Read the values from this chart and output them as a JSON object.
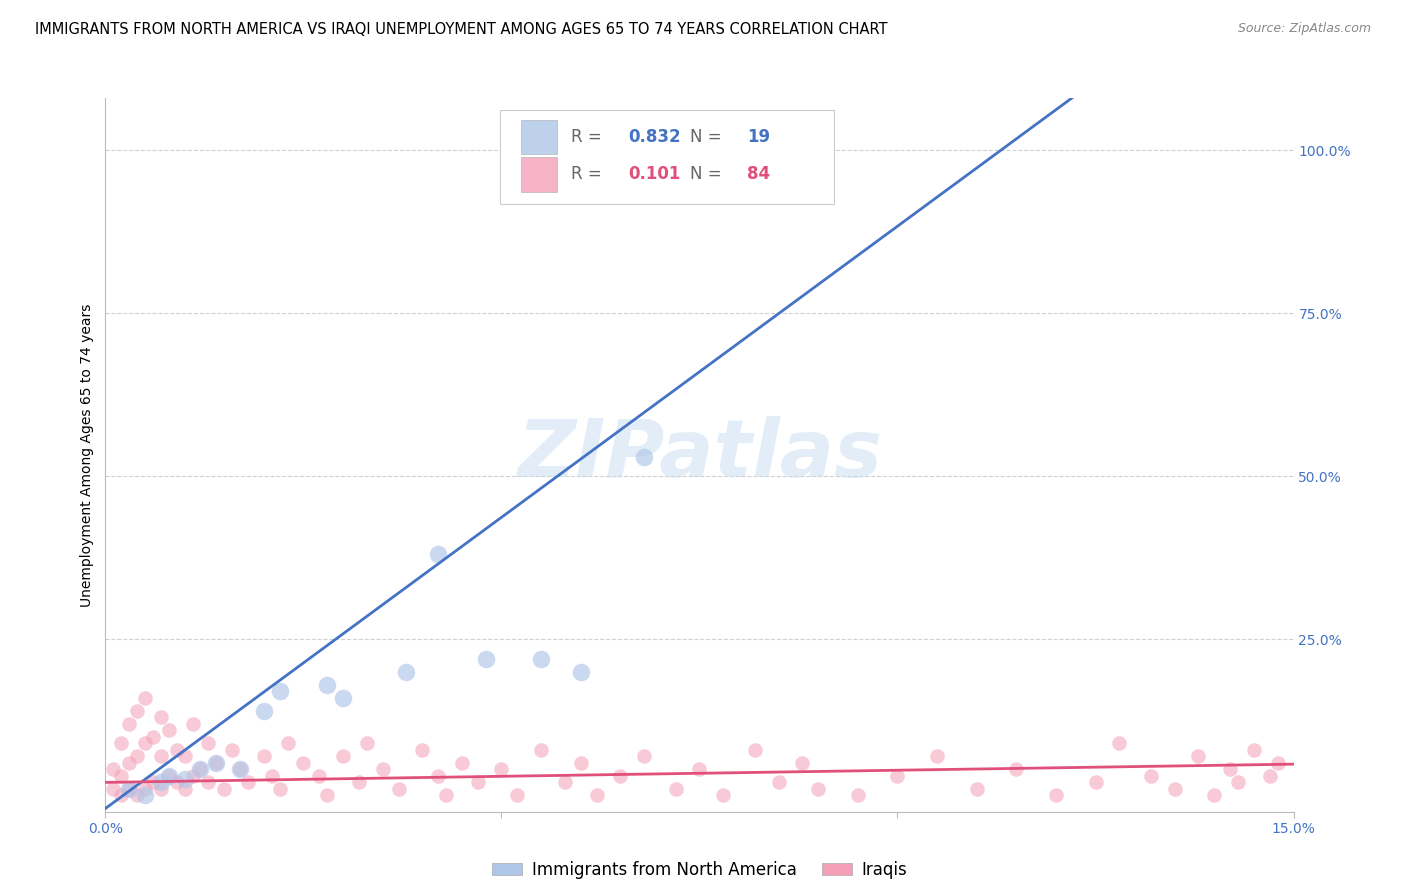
{
  "title": "IMMIGRANTS FROM NORTH AMERICA VS IRAQI UNEMPLOYMENT AMONG AGES 65 TO 74 YEARS CORRELATION CHART",
  "source": "Source: ZipAtlas.com",
  "ylabel": "Unemployment Among Ages 65 to 74 years",
  "xlim": [
    0.0,
    0.15
  ],
  "ylim": [
    -0.015,
    1.08
  ],
  "blue_color": "#aec6e8",
  "pink_color": "#f4a0b8",
  "blue_line_color": "#4472c4",
  "pink_line_color": "#e0507a",
  "right_axis_color": "#4472c4",
  "watermark_text": "ZIPatlas",
  "gridline_color": "#d0d0d0",
  "title_fontsize": 10.5,
  "axis_label_fontsize": 10,
  "tick_fontsize": 10,
  "legend_r1": "0.832",
  "legend_n1": "19",
  "legend_r2": "0.101",
  "legend_n2": "84",
  "blue_scatter_x": [
    0.003,
    0.005,
    0.007,
    0.008,
    0.01,
    0.012,
    0.014,
    0.017,
    0.02,
    0.022,
    0.028,
    0.03,
    0.038,
    0.042,
    0.048,
    0.055,
    0.06,
    0.068,
    0.09
  ],
  "blue_scatter_y": [
    0.02,
    0.01,
    0.03,
    0.04,
    0.035,
    0.05,
    0.06,
    0.05,
    0.14,
    0.17,
    0.18,
    0.16,
    0.2,
    0.38,
    0.22,
    0.22,
    0.2,
    0.53,
    1.0
  ],
  "pink_scatter_x": [
    0.001,
    0.001,
    0.002,
    0.002,
    0.002,
    0.003,
    0.003,
    0.003,
    0.004,
    0.004,
    0.004,
    0.005,
    0.005,
    0.005,
    0.006,
    0.006,
    0.007,
    0.007,
    0.007,
    0.008,
    0.008,
    0.009,
    0.009,
    0.01,
    0.01,
    0.011,
    0.011,
    0.012,
    0.013,
    0.013,
    0.014,
    0.015,
    0.016,
    0.017,
    0.018,
    0.02,
    0.021,
    0.022,
    0.023,
    0.025,
    0.027,
    0.028,
    0.03,
    0.032,
    0.033,
    0.035,
    0.037,
    0.04,
    0.042,
    0.043,
    0.045,
    0.047,
    0.05,
    0.052,
    0.055,
    0.058,
    0.06,
    0.062,
    0.065,
    0.068,
    0.072,
    0.075,
    0.078,
    0.082,
    0.085,
    0.088,
    0.09,
    0.095,
    0.1,
    0.105,
    0.11,
    0.115,
    0.12,
    0.125,
    0.128,
    0.132,
    0.135,
    0.138,
    0.14,
    0.142,
    0.143,
    0.145,
    0.147,
    0.148
  ],
  "pink_scatter_y": [
    0.02,
    0.05,
    0.01,
    0.04,
    0.09,
    0.02,
    0.06,
    0.12,
    0.01,
    0.07,
    0.14,
    0.02,
    0.09,
    0.16,
    0.03,
    0.1,
    0.02,
    0.07,
    0.13,
    0.04,
    0.11,
    0.03,
    0.08,
    0.02,
    0.07,
    0.04,
    0.12,
    0.05,
    0.03,
    0.09,
    0.06,
    0.02,
    0.08,
    0.05,
    0.03,
    0.07,
    0.04,
    0.02,
    0.09,
    0.06,
    0.04,
    0.01,
    0.07,
    0.03,
    0.09,
    0.05,
    0.02,
    0.08,
    0.04,
    0.01,
    0.06,
    0.03,
    0.05,
    0.01,
    0.08,
    0.03,
    0.06,
    0.01,
    0.04,
    0.07,
    0.02,
    0.05,
    0.01,
    0.08,
    0.03,
    0.06,
    0.02,
    0.01,
    0.04,
    0.07,
    0.02,
    0.05,
    0.01,
    0.03,
    0.09,
    0.04,
    0.02,
    0.07,
    0.01,
    0.05,
    0.03,
    0.08,
    0.04,
    0.06
  ],
  "blue_trend_x": [
    0.0,
    0.122
  ],
  "blue_trend_y": [
    -0.01,
    1.08
  ],
  "pink_trend_x": [
    0.0,
    0.15
  ],
  "pink_trend_y": [
    0.03,
    0.058
  ]
}
